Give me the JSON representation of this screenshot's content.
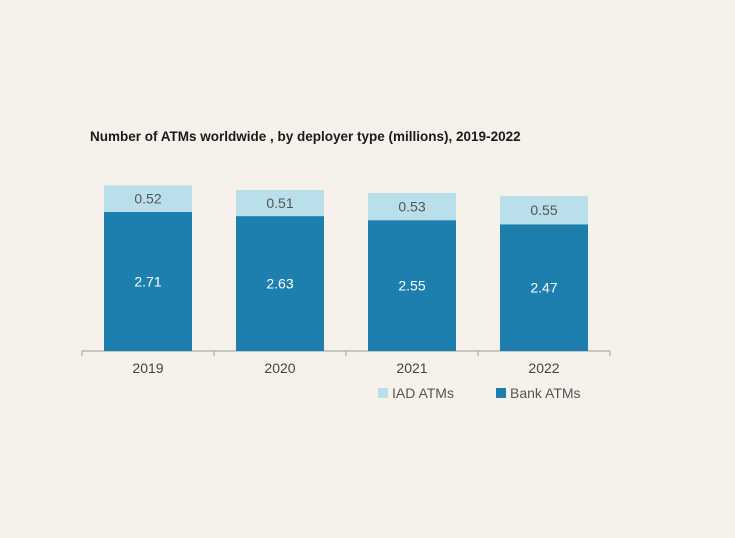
{
  "chart_data": {
    "type": "bar",
    "stacked": true,
    "title": "Number of ATMs worldwide , by deployer type (millions), 2019-2022",
    "categories": [
      "2019",
      "2020",
      "2021",
      "2022"
    ],
    "series": [
      {
        "name": "Bank ATMs",
        "values": [
          2.71,
          2.63,
          2.55,
          2.47
        ],
        "color": "#1c7fae",
        "label_color": "#ffffff"
      },
      {
        "name": "IAD ATMs",
        "values": [
          0.52,
          0.51,
          0.53,
          0.55
        ],
        "color": "#b9dfeb",
        "label_color": "#555555"
      }
    ],
    "legend_order": [
      "IAD ATMs",
      "Bank ATMs"
    ],
    "legend_position": "bottom-right",
    "ylim": [
      0,
      3.5
    ],
    "grid": false,
    "axis_color": "#9a9a9a"
  }
}
